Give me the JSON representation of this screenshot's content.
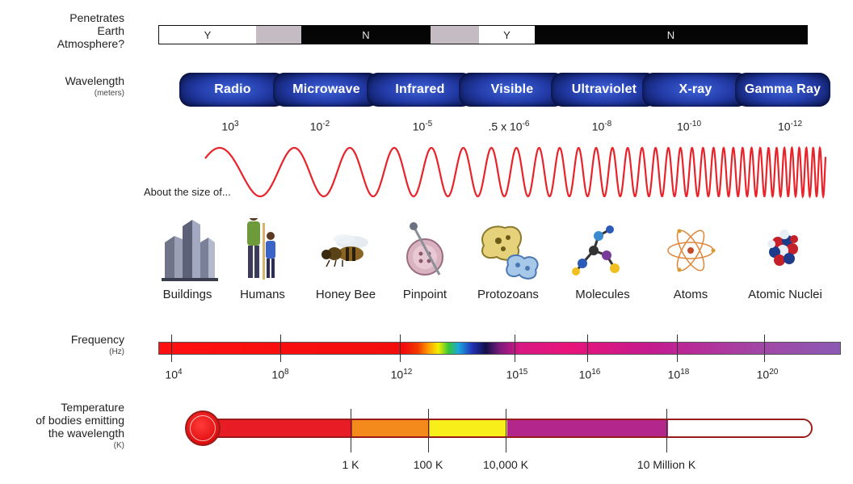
{
  "atmosphere": {
    "label_lines": [
      "Penetrates",
      "Earth",
      "Atmosphere?"
    ],
    "segments": [
      {
        "type": "y",
        "label": "Y"
      },
      {
        "type": "g",
        "label": ""
      },
      {
        "type": "n",
        "label": "N"
      },
      {
        "type": "g",
        "label": ""
      },
      {
        "type": "y",
        "label": "Y"
      },
      {
        "type": "n",
        "label": "N"
      }
    ]
  },
  "wavelength": {
    "label": "Wavelength",
    "unit": "(meters)",
    "bands": [
      {
        "name": "Radio",
        "base": "10",
        "exp": "3"
      },
      {
        "name": "Microwave",
        "base": "10",
        "exp": "-2"
      },
      {
        "name": "Infrared",
        "base": "10",
        "exp": "-5"
      },
      {
        "name": "Visible",
        "base": ".5 x 10",
        "exp": "-6"
      },
      {
        "name": "Ultraviolet",
        "base": "10",
        "exp": "-8"
      },
      {
        "name": "X-ray",
        "base": "10",
        "exp": "-10"
      },
      {
        "name": "Gamma Ray",
        "base": "10",
        "exp": "-12"
      }
    ]
  },
  "size_comparison": {
    "title": "About the size of...",
    "objects": [
      {
        "name": "Buildings",
        "icon": "buildings-icon"
      },
      {
        "name": "Humans",
        "icon": "humans-icon"
      },
      {
        "name": "Honey Bee",
        "icon": "honey-bee-icon"
      },
      {
        "name": "Pinpoint",
        "icon": "pinpoint-icon"
      },
      {
        "name": "Protozoans",
        "icon": "protozoans-icon"
      },
      {
        "name": "Molecules",
        "icon": "molecules-icon"
      },
      {
        "name": "Atoms",
        "icon": "atoms-icon"
      },
      {
        "name": "Atomic Nuclei",
        "icon": "atomic-nuclei-icon"
      }
    ]
  },
  "frequency": {
    "label": "Frequency",
    "unit": "(Hz)",
    "ticks": [
      {
        "base": "10",
        "exp": "4"
      },
      {
        "base": "10",
        "exp": "8"
      },
      {
        "base": "10",
        "exp": "12"
      },
      {
        "base": "10",
        "exp": "15"
      },
      {
        "base": "10",
        "exp": "16"
      },
      {
        "base": "10",
        "exp": "18"
      },
      {
        "base": "10",
        "exp": "20"
      }
    ]
  },
  "temperature": {
    "label_lines": [
      "Temperature",
      "of bodies emitting",
      "the wavelength"
    ],
    "unit": "(K)",
    "ticks": [
      "1 K",
      "100 K",
      "10,000 K",
      "10 Million K"
    ],
    "segment_colors": [
      "#e81c24",
      "#f48a1c",
      "#f7ee1a",
      "#b3278c",
      "#ffffff"
    ]
  },
  "colors": {
    "pill_blue": "#2a44b8",
    "wave_red": "#e8232a"
  }
}
